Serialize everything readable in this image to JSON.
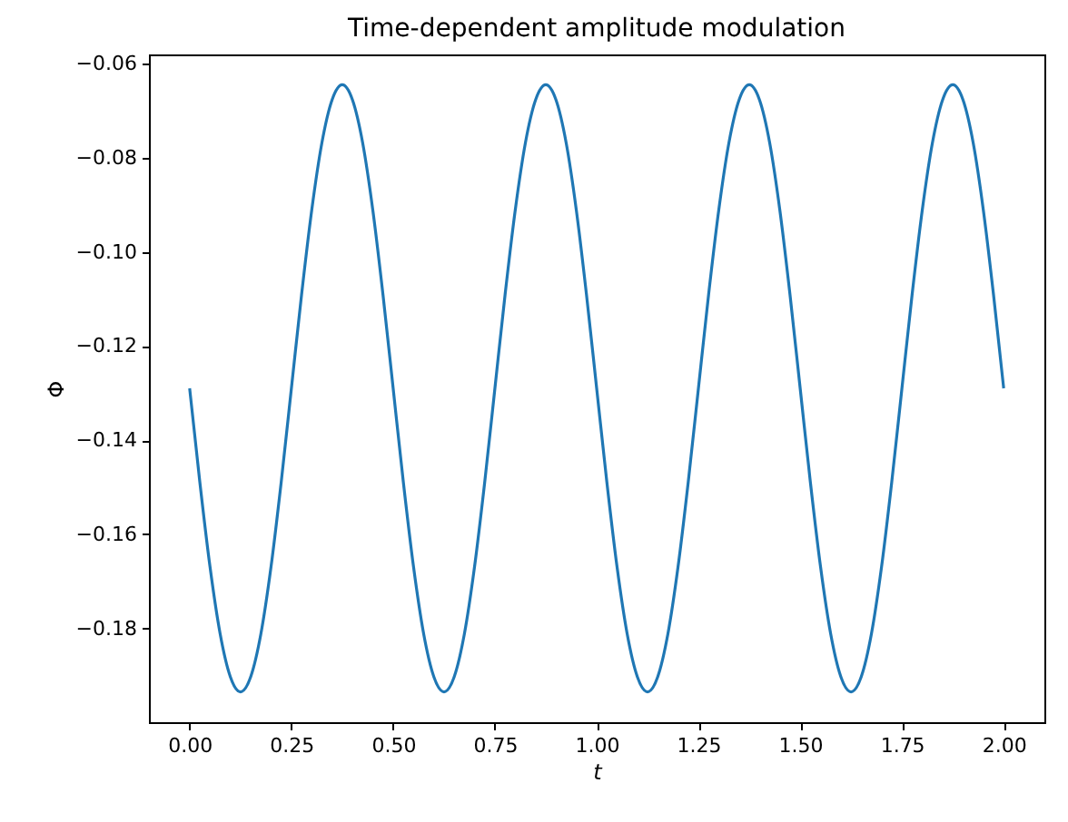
{
  "chart_data": {
    "type": "line",
    "title": "Time-dependent amplitude modulation",
    "xlabel": "t",
    "ylabel": "Φ",
    "x": [
      0,
      0.025,
      0.05,
      0.075,
      0.1,
      0.125,
      0.15,
      0.175,
      0.2,
      0.225,
      0.25,
      0.275,
      0.3,
      0.325,
      0.35,
      0.375,
      0.4,
      0.425,
      0.45,
      0.475,
      0.5,
      0.525,
      0.55,
      0.575,
      0.6,
      0.625,
      0.65,
      0.675,
      0.7,
      0.725,
      0.75,
      0.775,
      0.8,
      0.825,
      0.85,
      0.875,
      0.9,
      0.925,
      0.95,
      0.975,
      1,
      1.025,
      1.05,
      1.075,
      1.1,
      1.125,
      1.15,
      1.175,
      1.2,
      1.225,
      1.25,
      1.275,
      1.3,
      1.325,
      1.35,
      1.375,
      1.4,
      1.425,
      1.45,
      1.475,
      1.5,
      1.525,
      1.55,
      1.575,
      1.6,
      1.625,
      1.65,
      1.675,
      1.7,
      1.725,
      1.75,
      1.775,
      1.8,
      1.825,
      1.85,
      1.875,
      1.9,
      1.925,
      1.95,
      1.975,
      2
    ],
    "series": [
      {
        "color": "#1f77b4",
        "values": [
          -0.129,
          -0.1489,
          -0.1669,
          -0.1812,
          -0.1903,
          -0.1935,
          -0.1903,
          -0.1812,
          -0.1669,
          -0.1489,
          -0.129,
          -0.1091,
          -0.0911,
          -0.0768,
          -0.0677,
          -0.0645,
          -0.0677,
          -0.0768,
          -0.0911,
          -0.1091,
          -0.129,
          -0.1489,
          -0.1669,
          -0.1812,
          -0.1903,
          -0.1935,
          -0.1903,
          -0.1812,
          -0.1669,
          -0.1489,
          -0.129,
          -0.1091,
          -0.0911,
          -0.0768,
          -0.0677,
          -0.0645,
          -0.0677,
          -0.0768,
          -0.0911,
          -0.1091,
          -0.129,
          -0.1489,
          -0.1669,
          -0.1812,
          -0.1903,
          -0.1935,
          -0.1903,
          -0.1812,
          -0.1669,
          -0.1489,
          -0.129,
          -0.1091,
          -0.0911,
          -0.0768,
          -0.0677,
          -0.0645,
          -0.0677,
          -0.0768,
          -0.0911,
          -0.1091,
          -0.129,
          -0.1489,
          -0.1669,
          -0.1812,
          -0.1903,
          -0.1935,
          -0.1903,
          -0.1812,
          -0.1669,
          -0.1489,
          -0.129,
          -0.1091,
          -0.0911,
          -0.0768,
          -0.0677,
          -0.0645,
          -0.0677,
          -0.0768,
          -0.0911,
          -0.1091,
          -0.129
        ]
      }
    ],
    "xlim": [
      -0.1,
      2.1
    ],
    "xticks": [
      {
        "value": 0,
        "label": "0.00"
      },
      {
        "value": 0.25,
        "label": "0.25"
      },
      {
        "value": 0.5,
        "label": "0.50"
      },
      {
        "value": 0.75,
        "label": "0.75"
      },
      {
        "value": 1,
        "label": "1.00"
      },
      {
        "value": 1.25,
        "label": "1.25"
      },
      {
        "value": 1.5,
        "label": "1.50"
      },
      {
        "value": 1.75,
        "label": "1.75"
      },
      {
        "value": 2,
        "label": "2.00"
      }
    ],
    "ylim": [
      -0.19995,
      -0.05805
    ],
    "yticks": [
      {
        "value": -0.18,
        "label": "−0.18"
      },
      {
        "value": -0.16,
        "label": "−0.16"
      },
      {
        "value": -0.14,
        "label": "−0.14"
      },
      {
        "value": -0.12,
        "label": "−0.12"
      },
      {
        "value": -0.1,
        "label": "−0.10"
      },
      {
        "value": -0.08,
        "label": "−0.08"
      },
      {
        "value": -0.06,
        "label": "−0.06"
      }
    ],
    "grid": false,
    "marker": "none",
    "line_style": "solid"
  }
}
